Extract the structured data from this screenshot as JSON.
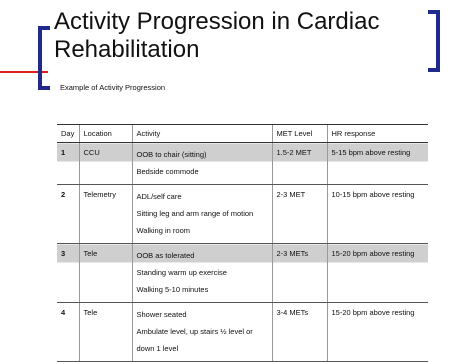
{
  "header": {
    "title": "Activity Progression in Cardiac Rehabilitation",
    "subtitle": "Example of Activity Progression"
  },
  "table": {
    "columns": [
      "Day",
      "Location",
      "Activity",
      "MET Level",
      "HR response"
    ],
    "rows": [
      {
        "day": "1",
        "location": "CCU",
        "activity": [
          "OOB to chair (sitting)",
          "Bedside commode"
        ],
        "met": "1.5-2 MET",
        "hr": "5-15 bpm above resting"
      },
      {
        "day": "2",
        "location": "Telemetry",
        "activity": [
          "ADL/self care",
          "Sitting leg and arm range of motion",
          "Walking in room"
        ],
        "met": "2-3 MET",
        "hr": "10-15 bpm above resting"
      },
      {
        "day": "3",
        "location": "Tele",
        "activity": [
          "OOB as tolerated",
          "Standing warm up exercise",
          "Walking 5-10 minutes"
        ],
        "met": "2-3 METs",
        "hr": "15-20 bpm above resting"
      },
      {
        "day": "4",
        "location": "Tele",
        "activity": [
          "Shower seated",
          "Ambulate level, up stairs ½ level or down 1 level"
        ],
        "met": "3-4 METs",
        "hr": "15-20 bpm above resting"
      }
    ]
  }
}
